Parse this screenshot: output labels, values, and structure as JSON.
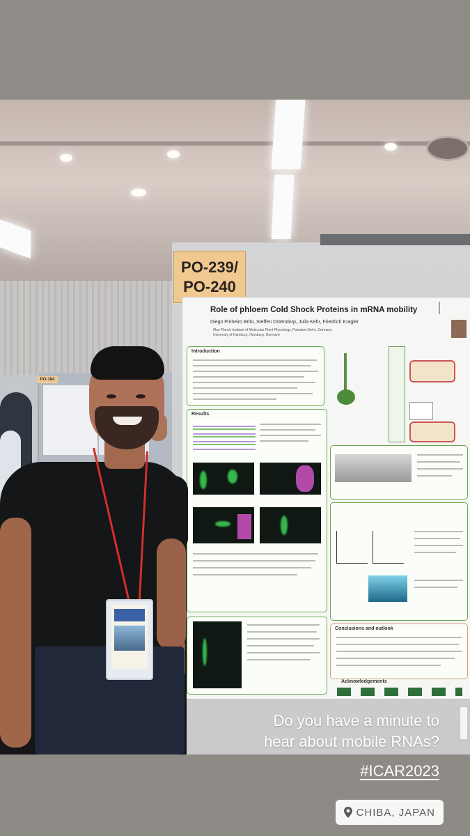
{
  "poster": {
    "sign_line1": "PO-239/",
    "sign_line2": "PO-240",
    "title": "Role of phloem Cold Shock Proteins in mRNA mobility",
    "authors": "Diego Pinheiro Brito, Steffen Ostendorp, Julia Kehr, Friedrich Kragler",
    "affiliation1": "Max Planck Institute of Molecular Plant Physiology, Potsdam-Golm, Germany",
    "affiliation2": "University of Hamburg, Hamburg, Germany",
    "sections": {
      "introduction": "Introduction",
      "results": "Results",
      "conclusions": "Conclusions and outlook",
      "acknowledgements": "Acknowledgements"
    },
    "neighbor_board_label": "PO-184"
  },
  "caption": {
    "line1": "Do you have a minute to",
    "line2": "hear about mobile RNAs?",
    "hashtag": "#ICAR2023"
  },
  "location": {
    "label": "CHIBA, JAPAN",
    "icon": "location-pin-icon"
  },
  "colors": {
    "poster_accent": "#69a94e",
    "sign": "#f0c990",
    "lanyard": "#d2302b"
  }
}
